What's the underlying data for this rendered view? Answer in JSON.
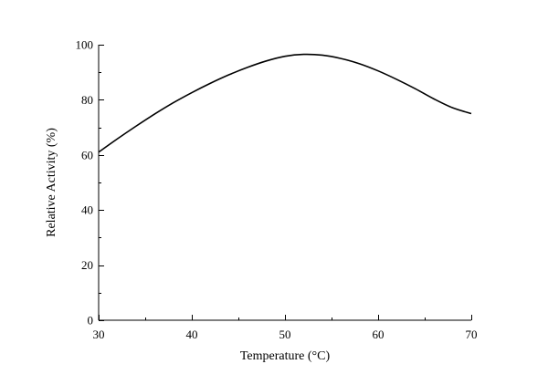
{
  "chart_data": {
    "type": "line",
    "xlabel": "Temperature (°C)",
    "ylabel": "Relative Activity (%)",
    "xlim": [
      30,
      70
    ],
    "ylim": [
      0,
      100
    ],
    "xticks": [
      30,
      40,
      50,
      60,
      70
    ],
    "yticks": [
      0,
      20,
      40,
      60,
      80,
      100
    ],
    "x_minor_step": 5,
    "y_minor_step": 10,
    "grid": false,
    "legend": "none",
    "line_color": "#000000",
    "series": [
      {
        "x": [
          30,
          32,
          34,
          36,
          38,
          40,
          42,
          44,
          46,
          48,
          50,
          52,
          54,
          56,
          58,
          60,
          62,
          64,
          66,
          68,
          70
        ],
        "values": [
          61.0,
          65.8,
          70.4,
          74.8,
          78.9,
          82.6,
          86.0,
          89.1,
          91.8,
          94.1,
          95.8,
          96.5,
          96.2,
          95.0,
          93.1,
          90.5,
          87.4,
          84.0,
          80.3,
          77.1,
          75.0
        ]
      }
    ]
  }
}
